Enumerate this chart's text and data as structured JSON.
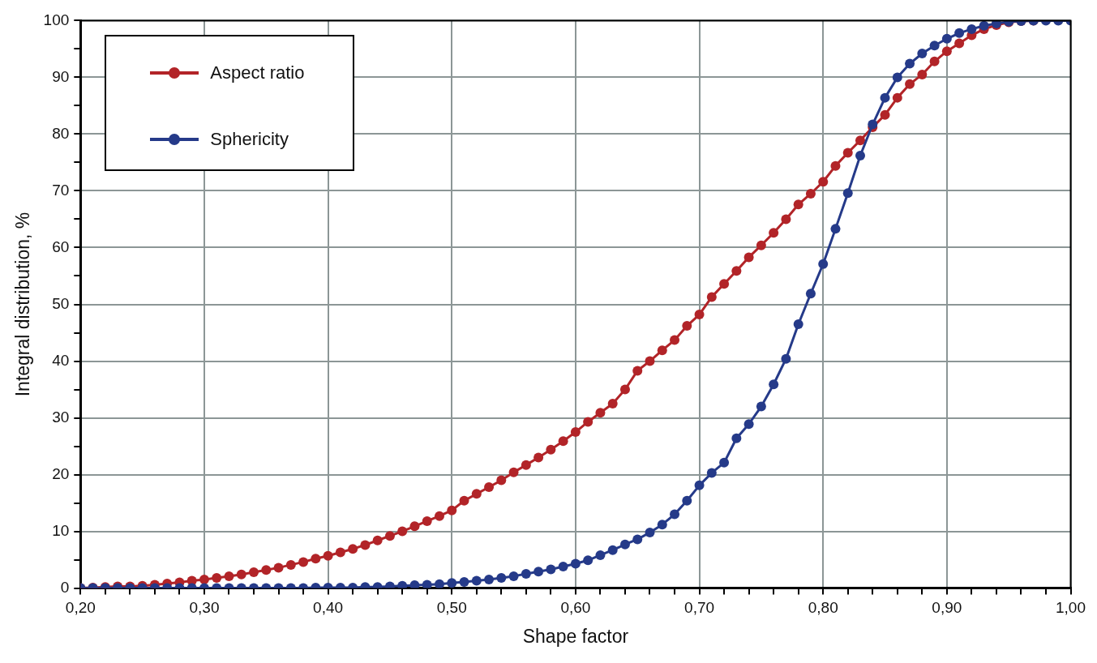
{
  "chart_data": {
    "type": "line",
    "xlabel": "Shape factor",
    "ylabel": "Integral distribution, %",
    "x": [
      0.2,
      0.21,
      0.22,
      0.23,
      0.24,
      0.25,
      0.26,
      0.27,
      0.28,
      0.29,
      0.3,
      0.31,
      0.32,
      0.33,
      0.34,
      0.35,
      0.36,
      0.37,
      0.38,
      0.39,
      0.4,
      0.41,
      0.42,
      0.43,
      0.44,
      0.45,
      0.46,
      0.47,
      0.48,
      0.49,
      0.5,
      0.51,
      0.52,
      0.53,
      0.54,
      0.55,
      0.56,
      0.57,
      0.58,
      0.59,
      0.6,
      0.61,
      0.62,
      0.63,
      0.64,
      0.65,
      0.66,
      0.67,
      0.68,
      0.69,
      0.7,
      0.71,
      0.72,
      0.73,
      0.74,
      0.75,
      0.76,
      0.77,
      0.78,
      0.79,
      0.8,
      0.81,
      0.82,
      0.83,
      0.84,
      0.85,
      0.86,
      0.87,
      0.88,
      0.89,
      0.9,
      0.91,
      0.92,
      0.93,
      0.94,
      0.95,
      0.96,
      0.97,
      0.98,
      0.99,
      1.0
    ],
    "series": [
      {
        "name": "Aspect ratio",
        "color": "#b22428",
        "values": [
          0,
          0.1,
          0.2,
          0.3,
          0.3,
          0.4,
          0.6,
          0.8,
          1.0,
          1.3,
          1.5,
          1.8,
          2.1,
          2.4,
          2.8,
          3.2,
          3.6,
          4.1,
          4.6,
          5.2,
          5.7,
          6.3,
          6.9,
          7.6,
          8.4,
          9.2,
          10.0,
          10.9,
          11.8,
          12.7,
          13.7,
          15.4,
          16.6,
          17.8,
          19.0,
          20.4,
          21.7,
          23.0,
          24.4,
          25.9,
          27.5,
          29.3,
          30.9,
          32.5,
          35.0,
          38.3,
          40.0,
          41.9,
          43.7,
          46.2,
          48.2,
          51.3,
          53.6,
          55.9,
          58.3,
          60.4,
          62.6,
          65.0,
          67.6,
          69.5,
          71.6,
          74.4,
          76.7,
          78.9,
          81.2,
          83.4,
          86.4,
          88.8,
          90.5,
          92.8,
          94.6,
          96.0,
          97.4,
          98.5,
          99.2,
          99.7,
          99.9,
          100,
          null,
          null,
          null
        ]
      },
      {
        "name": "Sphericity",
        "color": "#253a89",
        "values": [
          0,
          0,
          0,
          0,
          0,
          0,
          0,
          0,
          0,
          0,
          0,
          0,
          0,
          0,
          0,
          0,
          0,
          0,
          0,
          0.1,
          0.1,
          0.1,
          0.1,
          0.2,
          0.2,
          0.3,
          0.4,
          0.5,
          0.6,
          0.7,
          0.9,
          1.1,
          1.3,
          1.5,
          1.8,
          2.1,
          2.5,
          2.9,
          3.3,
          3.8,
          4.3,
          4.9,
          5.8,
          6.7,
          7.7,
          8.6,
          9.8,
          11.2,
          13.0,
          15.4,
          18.1,
          20.3,
          22.1,
          26.4,
          28.9,
          32.0,
          35.9,
          40.4,
          46.5,
          51.9,
          57.1,
          63.3,
          69.6,
          76.2,
          81.7,
          86.4,
          90.0,
          92.4,
          94.2,
          95.6,
          96.8,
          97.8,
          98.5,
          99.1,
          99.5,
          99.8,
          99.9,
          100,
          100,
          100,
          100
        ]
      }
    ],
    "xlim": [
      0.2,
      1.0
    ],
    "xticks": [
      {
        "value": 0.2,
        "label": "0,20"
      },
      {
        "value": 0.22,
        "label": null
      },
      {
        "value": 0.24,
        "label": null
      },
      {
        "value": 0.26,
        "label": null
      },
      {
        "value": 0.28,
        "label": null
      },
      {
        "value": 0.3,
        "label": "0,30"
      },
      {
        "value": 0.32,
        "label": null
      },
      {
        "value": 0.34,
        "label": null
      },
      {
        "value": 0.36,
        "label": null
      },
      {
        "value": 0.38,
        "label": null
      },
      {
        "value": 0.4,
        "label": "0,40"
      },
      {
        "value": 0.42,
        "label": null
      },
      {
        "value": 0.44,
        "label": null
      },
      {
        "value": 0.46,
        "label": null
      },
      {
        "value": 0.48,
        "label": null
      },
      {
        "value": 0.5,
        "label": "0,50"
      },
      {
        "value": 0.52,
        "label": null
      },
      {
        "value": 0.54,
        "label": null
      },
      {
        "value": 0.56,
        "label": null
      },
      {
        "value": 0.58,
        "label": null
      },
      {
        "value": 0.6,
        "label": "0,60"
      },
      {
        "value": 0.62,
        "label": null
      },
      {
        "value": 0.64,
        "label": null
      },
      {
        "value": 0.66,
        "label": null
      },
      {
        "value": 0.68,
        "label": null
      },
      {
        "value": 0.7,
        "label": "0,70"
      },
      {
        "value": 0.72,
        "label": null
      },
      {
        "value": 0.74,
        "label": null
      },
      {
        "value": 0.76,
        "label": null
      },
      {
        "value": 0.78,
        "label": null
      },
      {
        "value": 0.8,
        "label": "0,80"
      },
      {
        "value": 0.82,
        "label": null
      },
      {
        "value": 0.84,
        "label": null
      },
      {
        "value": 0.86,
        "label": null
      },
      {
        "value": 0.88,
        "label": null
      },
      {
        "value": 0.9,
        "label": "0,90"
      },
      {
        "value": 0.92,
        "label": null
      },
      {
        "value": 0.94,
        "label": null
      },
      {
        "value": 0.96,
        "label": null
      },
      {
        "value": 0.98,
        "label": null
      },
      {
        "value": 1.0,
        "label": "1,00"
      }
    ],
    "ylim": [
      0,
      100
    ],
    "yticks": [
      0,
      {
        "value": 5,
        "label": null
      },
      10,
      {
        "value": 15,
        "label": null
      },
      20,
      {
        "value": 25,
        "label": null
      },
      30,
      {
        "value": 35,
        "label": null
      },
      40,
      {
        "value": 45,
        "label": null
      },
      50,
      {
        "value": 55,
        "label": null
      },
      60,
      {
        "value": 65,
        "label": null
      },
      70,
      {
        "value": 75,
        "label": null
      },
      80,
      {
        "value": 85,
        "label": null
      },
      90,
      {
        "value": 95,
        "label": null
      },
      100
    ],
    "grid": true,
    "legend": "top left",
    "marker": "circle",
    "line_style": "solid"
  }
}
